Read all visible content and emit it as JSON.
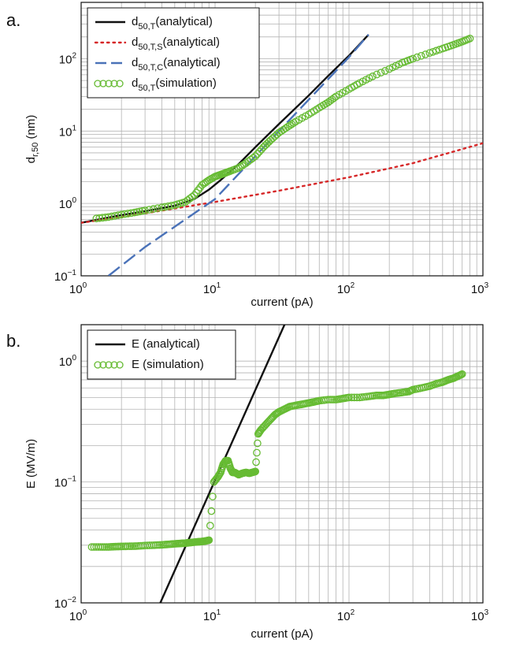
{
  "chart_data": [
    {
      "type": "line",
      "panel_label": "a.",
      "x_scale": "log",
      "y_scale": "log",
      "xlim": [
        1,
        1000
      ],
      "ylim": [
        0.1,
        600
      ],
      "xlabel": "current (pA)",
      "ylabel": {
        "base": "d",
        "sub": "r,50",
        "unit": " (nm)"
      },
      "x_tick_labels": [
        {
          "base": "10",
          "exp": "0"
        },
        {
          "base": "10",
          "exp": "1"
        },
        {
          "base": "10",
          "exp": "2"
        },
        {
          "base": "10",
          "exp": "3"
        }
      ],
      "y_tick_labels": [
        {
          "base": "10",
          "exp": "−1"
        },
        {
          "base": "10",
          "exp": "0"
        },
        {
          "base": "10",
          "exp": "1"
        },
        {
          "base": "10",
          "exp": "2"
        }
      ],
      "grid": true,
      "legend_position": "top-left",
      "series": [
        {
          "legend_base": "d",
          "legend_sub": "50,T",
          "legend_rest": "(analytical)",
          "style": "solid",
          "color": "#111111",
          "x": [
            1,
            2,
            3,
            5,
            7,
            9,
            11,
            15,
            20,
            30,
            50,
            70,
            100,
            140
          ],
          "y": [
            0.54,
            0.69,
            0.78,
            0.93,
            1.15,
            1.55,
            2.1,
            3.5,
            6.0,
            12.5,
            31,
            58,
            110,
            215
          ]
        },
        {
          "legend_base": "d",
          "legend_sub": "50,T,S",
          "legend_rest": "(analytical)",
          "style": "dotted",
          "color": "#d62728",
          "x": [
            1,
            3,
            10,
            30,
            100,
            300,
            1000
          ],
          "y": [
            0.54,
            0.73,
            1.05,
            1.5,
            2.3,
            3.6,
            6.8
          ]
        },
        {
          "legend_base": "d",
          "legend_sub": "50,T,C",
          "legend_rest": "(analytical)",
          "style": "dashed",
          "color": "#4a72b8",
          "x": [
            1.6,
            3,
            10,
            30,
            100,
            140
          ],
          "y": [
            0.1,
            0.25,
            1.15,
            10,
            105,
            215
          ]
        },
        {
          "legend_base": "d",
          "legend_sub": "50,T",
          "legend_rest": "(simulation)",
          "style": "markers",
          "color": "#66bb33",
          "x": [
            1.3,
            1.6,
            2,
            2.5,
            3,
            4,
            5,
            6,
            7,
            8,
            9,
            10,
            11,
            12,
            13,
            15,
            17,
            20,
            23,
            26,
            30,
            35,
            40,
            50,
            60,
            70,
            80,
            100,
            120,
            150,
            200,
            250,
            300,
            400,
            500,
            600,
            700,
            800
          ],
          "y": [
            0.62,
            0.65,
            0.7,
            0.75,
            0.8,
            0.88,
            0.95,
            1.05,
            1.3,
            1.8,
            2.1,
            2.35,
            2.5,
            2.65,
            2.8,
            3.1,
            3.6,
            4.5,
            6.0,
            7.5,
            9.5,
            11.5,
            13.5,
            17,
            21,
            25,
            30,
            38,
            46,
            57,
            72,
            88,
            100,
            120,
            138,
            155,
            172,
            190
          ]
        }
      ]
    },
    {
      "type": "line",
      "panel_label": "b.",
      "x_scale": "log",
      "y_scale": "log",
      "xlim": [
        1,
        1000
      ],
      "ylim": [
        0.01,
        2
      ],
      "xlabel": "current (pA)",
      "ylabel": {
        "base": "E (MV/m)",
        "sub": "",
        "unit": ""
      },
      "x_tick_labels": [
        {
          "base": "10",
          "exp": "0"
        },
        {
          "base": "10",
          "exp": "1"
        },
        {
          "base": "10",
          "exp": "2"
        },
        {
          "base": "10",
          "exp": "3"
        }
      ],
      "y_tick_labels": [
        {
          "base": "10",
          "exp": "−2"
        },
        {
          "base": "10",
          "exp": "−1"
        },
        {
          "base": "10",
          "exp": "0"
        }
      ],
      "grid": true,
      "legend_position": "top-left",
      "series": [
        {
          "legend_base": "E (analytical)",
          "legend_sub": "",
          "legend_rest": "",
          "style": "solid",
          "color": "#111111",
          "x": [
            3.9,
            33
          ],
          "y": [
            0.01,
            2.0
          ]
        },
        {
          "legend_base": "E (simulation)",
          "legend_sub": "",
          "legend_rest": "",
          "style": "markers",
          "color": "#66bb33",
          "x": [
            1.2,
            1.4,
            1.6,
            1.8,
            2,
            2.3,
            2.6,
            3,
            3.5,
            4,
            4.5,
            5,
            5.5,
            6,
            6.5,
            7,
            7.5,
            8,
            8.5,
            9,
            9.8,
            10.5,
            11,
            11.5,
            12,
            12.5,
            13,
            13.5,
            14,
            15,
            16,
            17,
            18,
            19,
            20,
            21,
            22,
            24,
            26,
            28,
            30,
            33,
            36,
            40,
            45,
            50,
            55,
            60,
            70,
            80,
            90,
            100,
            120,
            140,
            160,
            180,
            200,
            220,
            250,
            280,
            300,
            350,
            400,
            450,
            500,
            550,
            600,
            650,
            700
          ],
          "y": [
            0.029,
            0.029,
            0.029,
            0.0292,
            0.0293,
            0.0294,
            0.0295,
            0.0298,
            0.03,
            0.0302,
            0.0305,
            0.0308,
            0.031,
            0.0312,
            0.0315,
            0.0318,
            0.032,
            0.0322,
            0.0325,
            0.033,
            0.1,
            0.11,
            0.12,
            0.14,
            0.15,
            0.15,
            0.13,
            0.12,
            0.12,
            0.115,
            0.118,
            0.12,
            0.118,
            0.12,
            0.122,
            0.25,
            0.27,
            0.3,
            0.33,
            0.36,
            0.38,
            0.4,
            0.42,
            0.43,
            0.44,
            0.45,
            0.46,
            0.47,
            0.48,
            0.48,
            0.49,
            0.5,
            0.5,
            0.51,
            0.52,
            0.52,
            0.53,
            0.54,
            0.55,
            0.56,
            0.58,
            0.6,
            0.62,
            0.65,
            0.67,
            0.7,
            0.72,
            0.75,
            0.78
          ]
        }
      ]
    }
  ]
}
